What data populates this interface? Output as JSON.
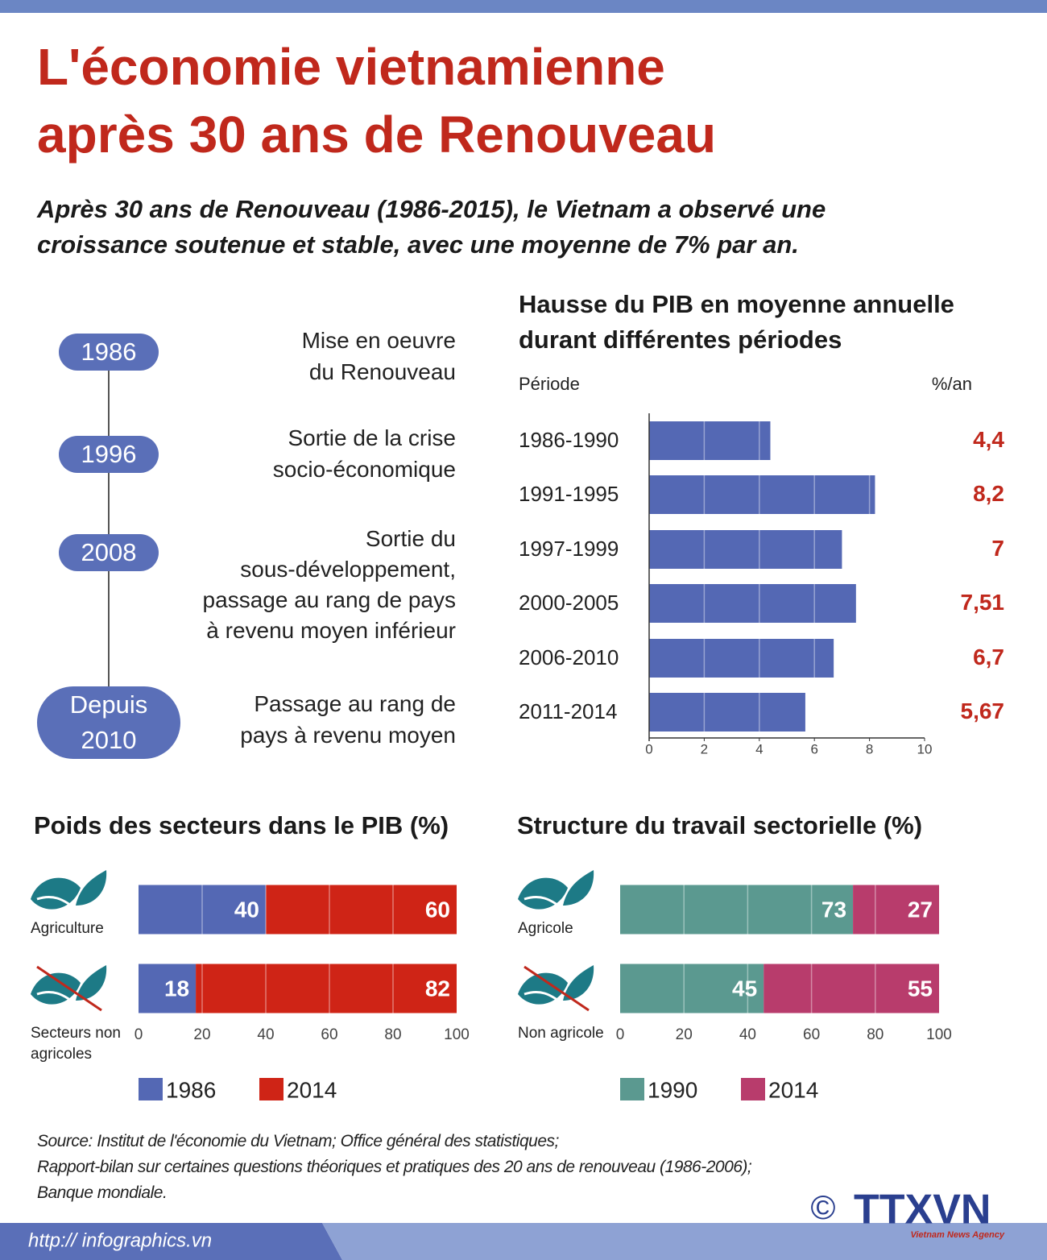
{
  "header": {
    "title": [
      "L'économie vietnamienne",
      "après 30 ans de Renouveau"
    ],
    "subtitle": [
      "Après 30 ans de Renouveau (1986-2015), le Vietnam a observé une",
      "croissance soutenue et stable, avec une moyenne de 7% par an."
    ]
  },
  "timeline": [
    {
      "year": "1986",
      "lines": [
        "Mise en oeuvre",
        "du Renouveau"
      ]
    },
    {
      "year": "1996",
      "lines": [
        "Sortie de la crise",
        "socio-économique"
      ]
    },
    {
      "year": "2008",
      "lines": [
        "Sortie du",
        "sous-développement,",
        "passage au rang de pays",
        "à revenu moyen inférieur"
      ]
    },
    {
      "year": "Depuis 2010",
      "lines": [
        "Passage au rang de",
        "pays à revenu moyen"
      ]
    }
  ],
  "chart_data": [
    {
      "type": "bar",
      "orientation": "horizontal",
      "title": "Hausse du PIB en moyenne annuelle durant différentes périodes",
      "category_label": "Période",
      "value_label": "%/an",
      "categories": [
        "1986-1990",
        "1991-1995",
        "1997-1999",
        "2000-2005",
        "2006-2010",
        "2011-2014"
      ],
      "values": [
        4.4,
        8.2,
        7,
        7.51,
        6.7,
        5.67
      ],
      "value_labels": [
        "4,4",
        "8,2",
        "7",
        "7,51",
        "6,7",
        "5,67"
      ],
      "color": "#5468b4",
      "label_color": "#c0281c",
      "xlim": [
        0,
        10
      ],
      "xticks": [
        0,
        2,
        4,
        6,
        8,
        10
      ],
      "grid": true,
      "axis_lines": true
    },
    {
      "type": "stacked_bar",
      "orientation": "horizontal",
      "title": "Poids des secteurs dans le PIB (%)",
      "categories": [
        "Agriculture",
        "Secteurs non agricoles"
      ],
      "series": [
        {
          "name": "1986",
          "color": "#5468b4",
          "values": [
            40,
            18
          ]
        },
        {
          "name": "2014",
          "color": "#cf2416",
          "values": [
            60,
            82
          ]
        }
      ],
      "xlim": [
        0,
        100
      ],
      "xticks": [
        0,
        20,
        40,
        60,
        80,
        100
      ],
      "grid": true
    },
    {
      "type": "stacked_bar",
      "orientation": "horizontal",
      "title": "Structure du travail sectorielle (%)",
      "categories": [
        "Agricole",
        "Non agricole"
      ],
      "series": [
        {
          "name": "1990",
          "color": "#5b9990",
          "values": [
            73,
            45
          ]
        },
        {
          "name": "2014",
          "color": "#b83c6c",
          "values": [
            27,
            55
          ]
        }
      ],
      "xlim": [
        0,
        100
      ],
      "xticks": [
        0,
        20,
        40,
        60,
        80,
        100
      ],
      "grid": true
    }
  ],
  "footer": {
    "source": [
      "Source: Institut de l'économie du Vietnam; Office général des statistiques;",
      "Rapport-bilan sur certaines questions théoriques et pratiques des 20 ans de renouveau (1986-2006);",
      "Banque mondiale."
    ],
    "url": "http:// infographics.vn",
    "copyright": "©",
    "logo": "TTXVN",
    "agency": "Vietnam News Agency"
  }
}
